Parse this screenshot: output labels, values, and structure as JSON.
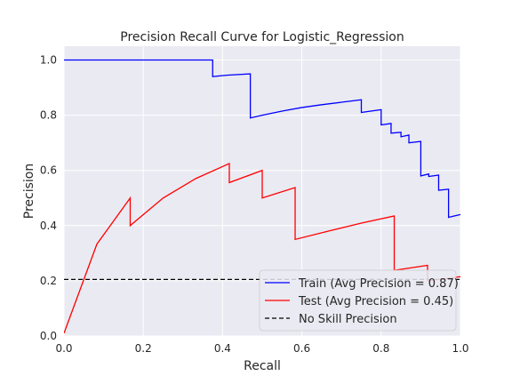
{
  "chart_data": {
    "type": "line",
    "title": "Precision Recall Curve for Logistic_Regression",
    "xlabel": "Recall",
    "ylabel": "Precision",
    "xlim": [
      0,
      1
    ],
    "ylim": [
      0,
      1.05
    ],
    "xticks": [
      0.0,
      0.2,
      0.4,
      0.6,
      0.8,
      1.0
    ],
    "xtick_labels": [
      "0.0",
      "0.2",
      "0.4",
      "0.6",
      "0.8",
      "1.0"
    ],
    "yticks": [
      0.0,
      0.2,
      0.4,
      0.6,
      0.8,
      1.0
    ],
    "ytick_labels": [
      "0.0",
      "0.2",
      "0.4",
      "0.6",
      "0.8",
      "1.0"
    ],
    "grid": true,
    "background": "#eaeaf2",
    "legend_position": "lower-right",
    "series": [
      {
        "name": "Train (Avg Precision = 0.87)",
        "color": "#0000ff",
        "style": "solid",
        "points": [
          [
            0.0,
            1.0
          ],
          [
            0.375,
            1.0
          ],
          [
            0.375,
            0.94
          ],
          [
            0.41,
            0.945
          ],
          [
            0.47,
            0.95
          ],
          [
            0.47,
            0.79
          ],
          [
            0.5,
            0.8
          ],
          [
            0.55,
            0.815
          ],
          [
            0.6,
            0.828
          ],
          [
            0.65,
            0.838
          ],
          [
            0.7,
            0.847
          ],
          [
            0.75,
            0.856
          ],
          [
            0.75,
            0.81
          ],
          [
            0.8,
            0.82
          ],
          [
            0.8,
            0.765
          ],
          [
            0.825,
            0.77
          ],
          [
            0.825,
            0.735
          ],
          [
            0.85,
            0.738
          ],
          [
            0.85,
            0.722
          ],
          [
            0.87,
            0.728
          ],
          [
            0.87,
            0.7
          ],
          [
            0.9,
            0.705
          ],
          [
            0.9,
            0.58
          ],
          [
            0.92,
            0.587
          ],
          [
            0.92,
            0.578
          ],
          [
            0.945,
            0.583
          ],
          [
            0.945,
            0.528
          ],
          [
            0.97,
            0.532
          ],
          [
            0.97,
            0.43
          ],
          [
            1.0,
            0.44
          ]
        ]
      },
      {
        "name": "Test (Avg Precision = 0.45)",
        "color": "#ff0000",
        "style": "solid",
        "points": [
          [
            0.0,
            0.01
          ],
          [
            0.083,
            0.333
          ],
          [
            0.167,
            0.5
          ],
          [
            0.167,
            0.4
          ],
          [
            0.25,
            0.5
          ],
          [
            0.333,
            0.571
          ],
          [
            0.417,
            0.625
          ],
          [
            0.417,
            0.556
          ],
          [
            0.5,
            0.6
          ],
          [
            0.5,
            0.5
          ],
          [
            0.583,
            0.538
          ],
          [
            0.583,
            0.35
          ],
          [
            0.667,
            0.38
          ],
          [
            0.75,
            0.409
          ],
          [
            0.833,
            0.435
          ],
          [
            0.833,
            0.238
          ],
          [
            0.917,
            0.256
          ],
          [
            0.917,
            0.2
          ],
          [
            1.0,
            0.215
          ]
        ]
      },
      {
        "name": "No Skill Precision",
        "color": "#000000",
        "style": "dashed",
        "points": [
          [
            0.0,
            0.205
          ],
          [
            1.0,
            0.205
          ]
        ]
      }
    ]
  }
}
